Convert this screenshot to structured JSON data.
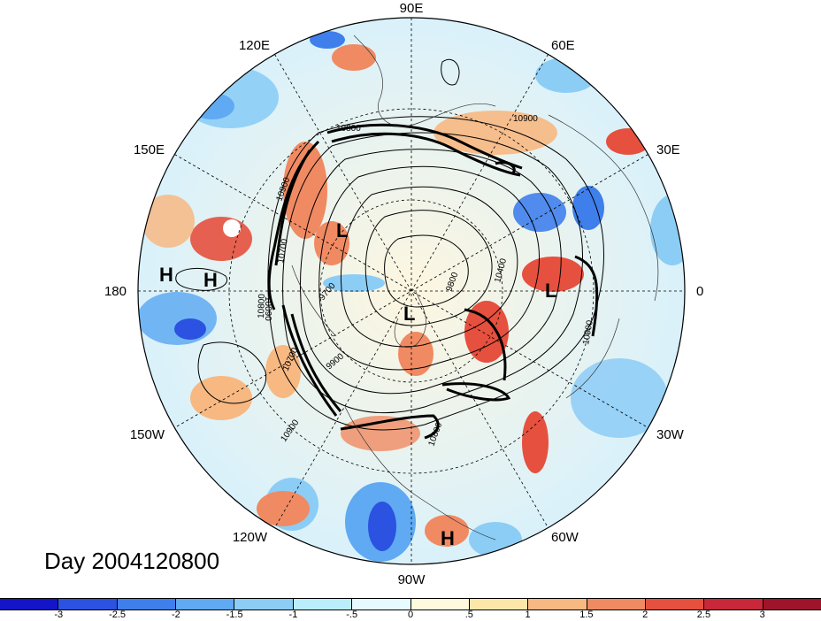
{
  "title": "Day 2004120800",
  "longitude_labels": [
    {
      "text": "90E"
    },
    {
      "text": "60E"
    },
    {
      "text": "30E"
    },
    {
      "text": "0"
    },
    {
      "text": "30W"
    },
    {
      "text": "60W"
    },
    {
      "text": "90W"
    },
    {
      "text": "120W"
    },
    {
      "text": "150W"
    },
    {
      "text": "180"
    },
    {
      "text": "150E"
    },
    {
      "text": "120E"
    }
  ],
  "contour_labels": [
    "10900",
    "10800",
    "10900",
    "10700",
    "10800",
    "9700",
    "9800",
    "10400",
    "10900",
    "10900",
    "10700",
    "9900",
    "10090",
    "10800"
  ],
  "pressure_markers": [
    {
      "type": "H"
    },
    {
      "type": "H"
    },
    {
      "type": "L"
    },
    {
      "type": "L"
    },
    {
      "type": "L"
    },
    {
      "type": "H"
    }
  ],
  "colorbar": {
    "colors": [
      "#1414c8",
      "#2b52e0",
      "#3f7fec",
      "#5faaf2",
      "#8ccdf6",
      "#baeefc",
      "#e6fbff",
      "#fff9dd",
      "#fde7a8",
      "#f7b882",
      "#f08a62",
      "#e6503e",
      "#c8283a",
      "#a0142a"
    ],
    "labels": [
      "-3",
      "-2.5",
      "-2",
      "-1.5",
      "-1",
      "-.5",
      "0",
      ".5",
      "1",
      "1.5",
      "2",
      "2.5",
      "3"
    ]
  }
}
